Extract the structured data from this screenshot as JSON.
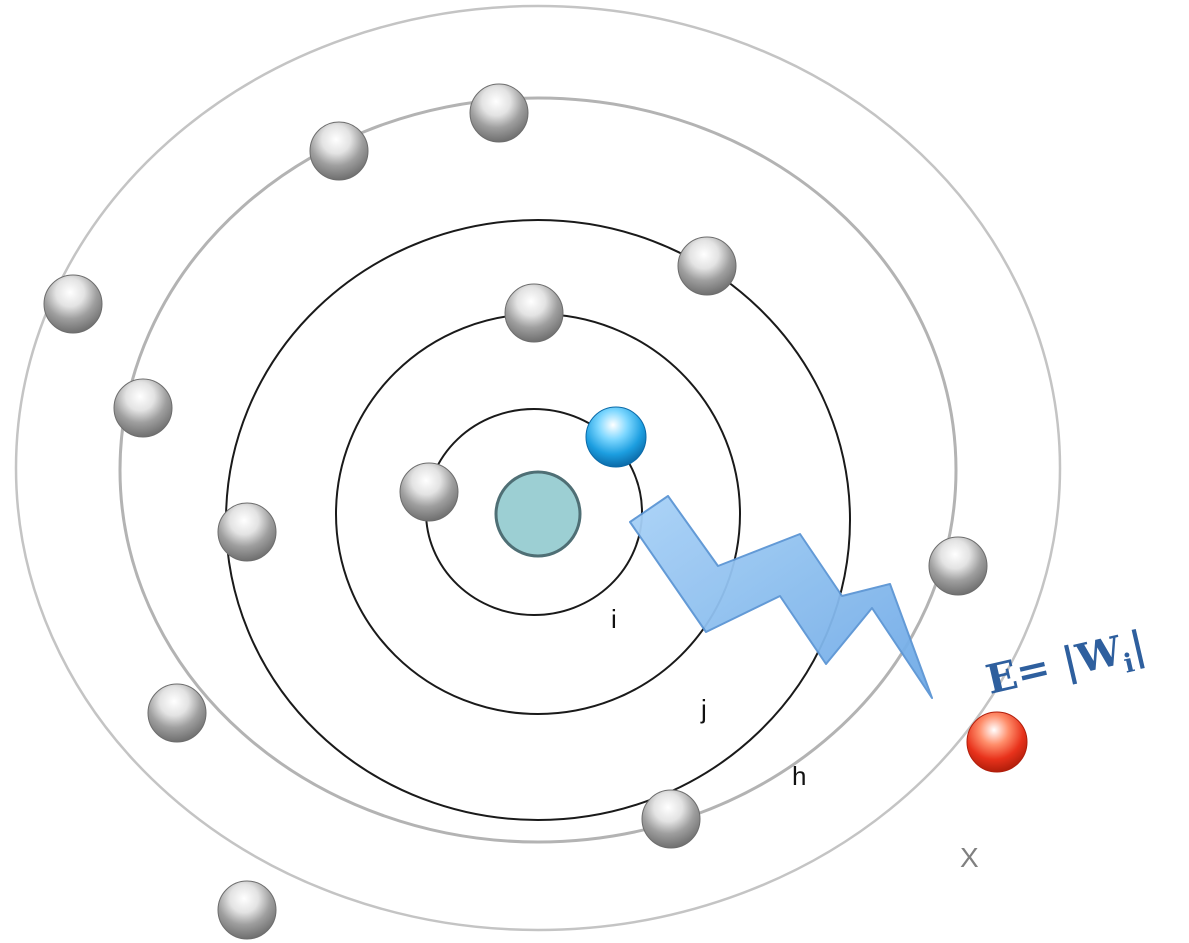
{
  "orbit_labels": {
    "i": "i",
    "j": "j",
    "h": "h",
    "x": "X"
  },
  "formula": {
    "main": "E= |W",
    "subscript": "i",
    "closing": "|"
  },
  "colors": {
    "nucleus": "#9ccfd3",
    "nucleus_stroke": "#4f6f75",
    "inner_orbit": "#1a1a1a",
    "outer_orbit": "#b9b9b9",
    "electron": "#a7a7a7",
    "excited_electron": "#2aa8e8",
    "ejected_electron": "#e8321b",
    "photon": "#8ec0ef",
    "formula": "#2e5f9e"
  },
  "legend": {
    "electrons": "gray-electron",
    "excited": "blue-electron",
    "ejected": "red-electron",
    "photon": "lightning-photon"
  }
}
